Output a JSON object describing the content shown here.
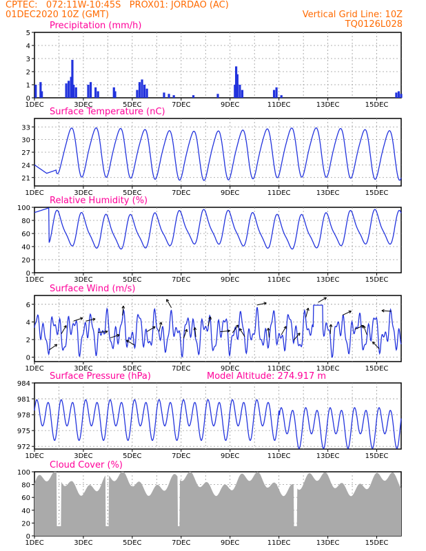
{
  "header": {
    "left_line1": "CPTEC:   072:11W-10:45S   PROX01: JORDAO (AC)",
    "left_line2": "01DEC2020 10Z (GMT)",
    "right_line1": "Vertical Grid Line: 10Z",
    "right_line2": "TQ0126L028"
  },
  "x_axis": {
    "ticks": [
      "1DEC",
      "3DEC",
      "5DEC",
      "7DEC",
      "9DEC",
      "11DEC",
      "13DEC",
      "15DEC"
    ],
    "year_label": "2020",
    "range_days": [
      0,
      15
    ]
  },
  "colors": {
    "line": "#2233dd",
    "bar": "#2233dd",
    "cloud": "#aaaaaa",
    "title": "#ff0099",
    "header": "#ff6a00",
    "grid": "#999999"
  },
  "chart_data": [
    {
      "id": "precip",
      "type": "bar",
      "title": "Precipitation (mm/h)",
      "ylim": [
        0,
        5
      ],
      "yticks": [
        0,
        1,
        2,
        3,
        4,
        5
      ],
      "series": [
        {
          "points": [
            [
              0.05,
              1.0
            ],
            [
              0.25,
              1.2
            ],
            [
              0.3,
              0.5
            ],
            [
              1.3,
              1.1
            ],
            [
              1.4,
              1.3
            ],
            [
              1.5,
              1.6
            ],
            [
              1.55,
              2.9
            ],
            [
              1.6,
              1.0
            ],
            [
              1.7,
              0.8
            ],
            [
              2.2,
              1.0
            ],
            [
              2.3,
              1.2
            ],
            [
              2.5,
              0.8
            ],
            [
              2.6,
              0.5
            ],
            [
              3.25,
              0.8
            ],
            [
              3.3,
              0.5
            ],
            [
              4.2,
              0.6
            ],
            [
              4.3,
              1.2
            ],
            [
              4.4,
              1.4
            ],
            [
              4.5,
              1.0
            ],
            [
              4.6,
              0.7
            ],
            [
              5.3,
              0.4
            ],
            [
              5.5,
              0.3
            ],
            [
              5.7,
              0.2
            ],
            [
              6.5,
              0.2
            ],
            [
              7.5,
              0.3
            ],
            [
              8.2,
              1.0
            ],
            [
              8.25,
              2.4
            ],
            [
              8.3,
              1.8
            ],
            [
              8.4,
              1.0
            ],
            [
              8.5,
              0.6
            ],
            [
              9.8,
              0.6
            ],
            [
              9.9,
              0.8
            ],
            [
              10.1,
              0.2
            ],
            [
              14.8,
              0.4
            ],
            [
              14.9,
              0.5
            ],
            [
              15.0,
              0.3
            ]
          ]
        }
      ]
    },
    {
      "id": "temp",
      "type": "line",
      "title": "Surface Temperature (nC)",
      "ylim": [
        19,
        35
      ],
      "yticks": [
        21,
        24,
        27,
        30,
        33
      ],
      "kind": "temp"
    },
    {
      "id": "rh",
      "type": "line",
      "title": "Relative Humidity (%)",
      "ylim": [
        0,
        100
      ],
      "yticks": [
        0,
        20,
        40,
        60,
        80,
        100
      ],
      "kind": "rh"
    },
    {
      "id": "wind",
      "type": "line",
      "title": "Surface Wind (m/s)",
      "ylim": [
        -0.5,
        7
      ],
      "yticks": [
        0,
        2,
        4,
        6
      ],
      "kind": "wind"
    },
    {
      "id": "pressure",
      "type": "line",
      "title": "Surface Pressure (hPa)",
      "extra_title": "Model Altitude: 274.917 m",
      "ylim": [
        971.5,
        984
      ],
      "yticks": [
        972,
        975,
        978,
        981,
        984
      ],
      "kind": "pres"
    },
    {
      "id": "cloud",
      "type": "area",
      "title": "Cloud Cover (%)",
      "ylim": [
        0,
        100
      ],
      "yticks": [
        0,
        20,
        40,
        60,
        80,
        100
      ],
      "kind": "cloud"
    }
  ]
}
